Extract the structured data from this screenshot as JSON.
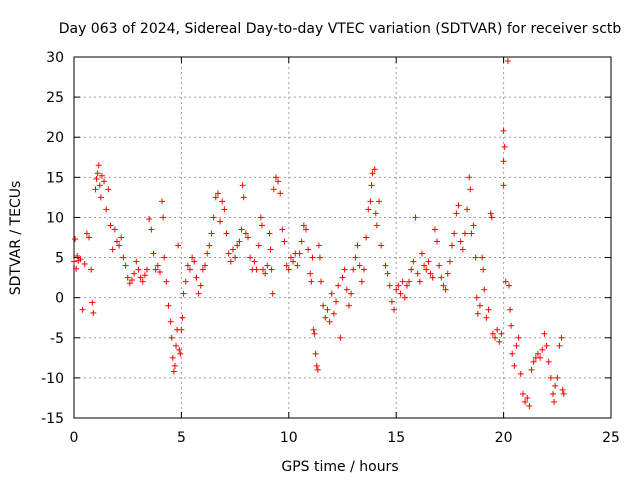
{
  "chart_data": {
    "type": "scatter",
    "title": "Day 063 of 2024, Sidereal Day-to-day VTEC variation (SDTVAR) for receiver sctb",
    "xlabel": "GPS time / hours",
    "ylabel": "SDTVAR / TECUs",
    "xlim": [
      0,
      25
    ],
    "ylim": [
      -15,
      30
    ],
    "xticks": [
      "0",
      "5",
      "10",
      "15",
      "20",
      "25"
    ],
    "yticks": [
      "-15",
      "-10",
      "-5",
      "0",
      "5",
      "10",
      "15",
      "20",
      "25",
      "30"
    ],
    "grid": true,
    "marker": "+",
    "color": "#ff0000",
    "series": [
      {
        "name": "SDTVAR",
        "points": [
          [
            0.0,
            4.5
          ],
          [
            0.05,
            7.3
          ],
          [
            0.1,
            3.6
          ],
          [
            0.15,
            5.2
          ],
          [
            0.2,
            4.6
          ],
          [
            0.3,
            4.8
          ],
          [
            0.4,
            -1.5
          ],
          [
            0.5,
            4.2
          ],
          [
            0.6,
            8.0
          ],
          [
            0.7,
            7.5
          ],
          [
            0.8,
            3.5
          ],
          [
            0.85,
            -0.6
          ],
          [
            0.9,
            -1.9
          ],
          [
            1.0,
            13.5
          ],
          [
            1.05,
            14.8
          ],
          [
            1.1,
            15.5
          ],
          [
            1.15,
            16.5
          ],
          [
            1.2,
            14.0
          ],
          [
            1.25,
            12.5
          ],
          [
            1.3,
            15.2
          ],
          [
            1.4,
            14.5
          ],
          [
            1.5,
            11.0
          ],
          [
            1.6,
            13.5
          ],
          [
            1.7,
            9.0
          ],
          [
            1.8,
            6.0
          ],
          [
            1.9,
            8.5
          ],
          [
            2.0,
            7.0
          ],
          [
            2.1,
            6.5
          ],
          [
            2.2,
            7.5
          ],
          [
            2.3,
            5.0
          ],
          [
            2.4,
            4.0
          ],
          [
            2.5,
            2.5
          ],
          [
            2.6,
            1.8
          ],
          [
            2.7,
            2.2
          ],
          [
            2.8,
            3.0
          ],
          [
            2.9,
            4.5
          ],
          [
            3.0,
            3.5
          ],
          [
            3.1,
            2.5
          ],
          [
            3.2,
            2.0
          ],
          [
            3.3,
            2.8
          ],
          [
            3.4,
            3.5
          ],
          [
            3.5,
            9.8
          ],
          [
            3.6,
            8.5
          ],
          [
            3.7,
            5.5
          ],
          [
            3.8,
            3.5
          ],
          [
            3.9,
            4.0
          ],
          [
            4.0,
            3.2
          ],
          [
            4.1,
            12.0
          ],
          [
            4.15,
            10.0
          ],
          [
            4.2,
            5.0
          ],
          [
            4.3,
            2.0
          ],
          [
            4.4,
            -1.0
          ],
          [
            4.5,
            -3.0
          ],
          [
            4.55,
            -5.0
          ],
          [
            4.6,
            -7.5
          ],
          [
            4.65,
            -9.2
          ],
          [
            4.7,
            -8.5
          ],
          [
            4.75,
            -6.0
          ],
          [
            4.8,
            -4.0
          ],
          [
            4.85,
            6.5
          ],
          [
            4.9,
            -6.5
          ],
          [
            4.95,
            -7.0
          ],
          [
            5.0,
            -4.0
          ],
          [
            5.05,
            -2.5
          ],
          [
            5.1,
            0.5
          ],
          [
            5.2,
            2.0
          ],
          [
            5.3,
            4.0
          ],
          [
            5.4,
            3.5
          ],
          [
            5.5,
            5.0
          ],
          [
            5.6,
            4.5
          ],
          [
            5.7,
            2.5
          ],
          [
            5.8,
            0.5
          ],
          [
            5.9,
            1.5
          ],
          [
            6.0,
            3.5
          ],
          [
            6.1,
            4.0
          ],
          [
            6.2,
            5.5
          ],
          [
            6.3,
            6.5
          ],
          [
            6.4,
            8.0
          ],
          [
            6.5,
            10.0
          ],
          [
            6.6,
            12.5
          ],
          [
            6.7,
            13.0
          ],
          [
            6.8,
            9.5
          ],
          [
            6.9,
            12.0
          ],
          [
            7.0,
            11.0
          ],
          [
            7.1,
            8.0
          ],
          [
            7.2,
            5.5
          ],
          [
            7.3,
            4.5
          ],
          [
            7.4,
            6.0
          ],
          [
            7.5,
            5.0
          ],
          [
            7.6,
            6.5
          ],
          [
            7.7,
            7.0
          ],
          [
            7.8,
            8.5
          ],
          [
            7.85,
            14.0
          ],
          [
            7.9,
            12.5
          ],
          [
            8.0,
            8.0
          ],
          [
            8.1,
            7.5
          ],
          [
            8.2,
            5.0
          ],
          [
            8.3,
            3.5
          ],
          [
            8.4,
            4.5
          ],
          [
            8.5,
            3.5
          ],
          [
            8.6,
            6.5
          ],
          [
            8.7,
            10.0
          ],
          [
            8.75,
            9.0
          ],
          [
            8.8,
            3.5
          ],
          [
            8.9,
            3.0
          ],
          [
            9.0,
            4.0
          ],
          [
            9.1,
            8.0
          ],
          [
            9.15,
            6.0
          ],
          [
            9.2,
            3.5
          ],
          [
            9.25,
            0.5
          ],
          [
            9.3,
            13.5
          ],
          [
            9.4,
            15.0
          ],
          [
            9.5,
            14.5
          ],
          [
            9.6,
            13.0
          ],
          [
            9.7,
            8.5
          ],
          [
            9.8,
            7.0
          ],
          [
            9.9,
            4.0
          ],
          [
            10.0,
            3.5
          ],
          [
            10.1,
            5.0
          ],
          [
            10.2,
            4.5
          ],
          [
            10.3,
            5.5
          ],
          [
            10.4,
            4.0
          ],
          [
            10.5,
            5.5
          ],
          [
            10.6,
            7.0
          ],
          [
            10.7,
            9.0
          ],
          [
            10.8,
            8.5
          ],
          [
            10.9,
            6.0
          ],
          [
            11.0,
            3.0
          ],
          [
            11.05,
            2.0
          ],
          [
            11.1,
            5.0
          ],
          [
            11.15,
            -4.0
          ],
          [
            11.2,
            -4.5
          ],
          [
            11.25,
            -7.0
          ],
          [
            11.3,
            -8.5
          ],
          [
            11.35,
            -9.0
          ],
          [
            11.4,
            6.5
          ],
          [
            11.45,
            5.0
          ],
          [
            11.5,
            2.0
          ],
          [
            11.6,
            -1.0
          ],
          [
            11.7,
            -2.5
          ],
          [
            11.8,
            -1.5
          ],
          [
            11.9,
            -3.0
          ],
          [
            12.0,
            0.5
          ],
          [
            12.1,
            -2.0
          ],
          [
            12.2,
            -0.5
          ],
          [
            12.3,
            1.5
          ],
          [
            12.4,
            -5.0
          ],
          [
            12.5,
            2.5
          ],
          [
            12.6,
            3.5
          ],
          [
            12.7,
            1.0
          ],
          [
            12.8,
            -1.0
          ],
          [
            12.9,
            0.5
          ],
          [
            13.0,
            3.5
          ],
          [
            13.1,
            5.0
          ],
          [
            13.2,
            6.5
          ],
          [
            13.3,
            4.0
          ],
          [
            13.4,
            2.0
          ],
          [
            13.5,
            3.5
          ],
          [
            13.6,
            7.5
          ],
          [
            13.7,
            11.0
          ],
          [
            13.8,
            12.0
          ],
          [
            13.85,
            14.0
          ],
          [
            13.9,
            15.5
          ],
          [
            14.0,
            16.0
          ],
          [
            14.05,
            10.5
          ],
          [
            14.1,
            9.0
          ],
          [
            14.2,
            12.0
          ],
          [
            14.3,
            6.5
          ],
          [
            14.5,
            4.0
          ],
          [
            14.6,
            3.0
          ],
          [
            14.7,
            1.5
          ],
          [
            14.8,
            -0.5
          ],
          [
            14.9,
            -1.5
          ],
          [
            15.0,
            1.0
          ],
          [
            15.1,
            1.5
          ],
          [
            15.2,
            0.5
          ],
          [
            15.3,
            2.0
          ],
          [
            15.4,
            0.0
          ],
          [
            15.5,
            1.5
          ],
          [
            15.6,
            2.0
          ],
          [
            15.7,
            3.5
          ],
          [
            15.8,
            4.5
          ],
          [
            15.9,
            10.0
          ],
          [
            16.0,
            3.0
          ],
          [
            16.1,
            2.0
          ],
          [
            16.2,
            5.5
          ],
          [
            16.3,
            4.0
          ],
          [
            16.4,
            3.5
          ],
          [
            16.5,
            4.5
          ],
          [
            16.6,
            3.0
          ],
          [
            16.7,
            2.5
          ],
          [
            16.8,
            8.5
          ],
          [
            16.9,
            7.0
          ],
          [
            17.0,
            4.0
          ],
          [
            17.1,
            2.5
          ],
          [
            17.2,
            1.5
          ],
          [
            17.3,
            1.0
          ],
          [
            17.4,
            3.0
          ],
          [
            17.5,
            4.5
          ],
          [
            17.6,
            6.5
          ],
          [
            17.7,
            8.0
          ],
          [
            17.8,
            10.5
          ],
          [
            17.9,
            11.5
          ],
          [
            18.0,
            7.0
          ],
          [
            18.1,
            6.0
          ],
          [
            18.2,
            8.0
          ],
          [
            18.3,
            11.0
          ],
          [
            18.4,
            15.0
          ],
          [
            18.45,
            13.5
          ],
          [
            18.5,
            8.0
          ],
          [
            18.6,
            9.0
          ],
          [
            18.7,
            5.0
          ],
          [
            18.75,
            0.0
          ],
          [
            18.8,
            -2.0
          ],
          [
            18.9,
            -1.0
          ],
          [
            19.0,
            5.0
          ],
          [
            19.05,
            3.5
          ],
          [
            19.1,
            1.0
          ],
          [
            19.2,
            -2.5
          ],
          [
            19.3,
            -1.5
          ],
          [
            19.4,
            10.5
          ],
          [
            19.45,
            10.0
          ],
          [
            19.5,
            -4.5
          ],
          [
            19.6,
            -5.0
          ],
          [
            19.7,
            -4.0
          ],
          [
            19.8,
            -5.5
          ],
          [
            19.9,
            -4.5
          ],
          [
            20.0,
            20.8
          ],
          [
            20.05,
            18.8
          ],
          [
            20.0,
            17.0
          ],
          [
            20.0,
            14.0
          ],
          [
            20.1,
            2.0
          ],
          [
            20.2,
            29.5
          ],
          [
            20.25,
            1.5
          ],
          [
            20.3,
            -1.5
          ],
          [
            20.35,
            -3.5
          ],
          [
            20.4,
            -7.0
          ],
          [
            20.5,
            -8.5
          ],
          [
            20.6,
            -6.0
          ],
          [
            20.7,
            -5.0
          ],
          [
            20.8,
            -9.5
          ],
          [
            20.9,
            -12.0
          ],
          [
            21.0,
            -13.0
          ],
          [
            21.1,
            -12.5
          ],
          [
            21.2,
            -13.5
          ],
          [
            21.3,
            -9.0
          ],
          [
            21.4,
            -8.0
          ],
          [
            21.5,
            -7.5
          ],
          [
            21.6,
            -7.0
          ],
          [
            21.7,
            -7.5
          ],
          [
            21.8,
            -6.5
          ],
          [
            21.9,
            -4.5
          ],
          [
            22.0,
            -6.0
          ],
          [
            22.1,
            -8.0
          ],
          [
            22.2,
            -10.0
          ],
          [
            22.3,
            -12.0
          ],
          [
            22.35,
            -13.0
          ],
          [
            22.4,
            -11.0
          ],
          [
            22.5,
            -10.0
          ],
          [
            22.6,
            -6.0
          ],
          [
            22.7,
            -5.0
          ],
          [
            22.75,
            -11.5
          ],
          [
            22.8,
            -12.0
          ]
        ]
      }
    ]
  }
}
